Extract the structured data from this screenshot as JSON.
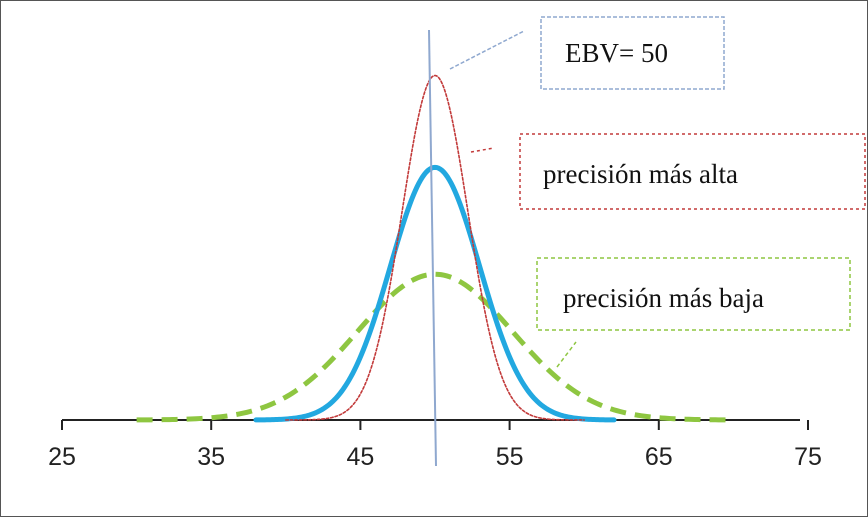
{
  "chart_data": {
    "type": "line",
    "title": "",
    "xlabel": "",
    "ylabel": "",
    "xlim": [
      25,
      75
    ],
    "ylim": [
      0,
      0.2
    ],
    "x_ticks": [
      "25",
      "35",
      "45",
      "55",
      "65",
      "75"
    ],
    "grid": false,
    "reference_line": {
      "x": 50,
      "label": "EBV= 50",
      "color": "#8fa8cf"
    },
    "series": [
      {
        "name": "precisión más alta",
        "mean": 50,
        "sd": 2.2,
        "x_range": [
          40,
          60
        ],
        "style": "dotted",
        "color": "#c23a3a"
      },
      {
        "name": "",
        "mean": 50,
        "sd": 3.0,
        "x_range": [
          38,
          62
        ],
        "style": "solid",
        "color": "#22a8e0"
      },
      {
        "name": "precisión más baja",
        "mean": 50,
        "sd": 5.2,
        "x_range": [
          30,
          70
        ],
        "style": "dashed",
        "color": "#8ec641"
      }
    ],
    "callouts": {
      "ebv": {
        "text": "EBV= 50",
        "border": "#8fa8cf"
      },
      "high": {
        "text": "precisión más alta",
        "border": "#c23a3a"
      },
      "low": {
        "text": "precisión más baja",
        "border": "#8ec641"
      }
    }
  }
}
